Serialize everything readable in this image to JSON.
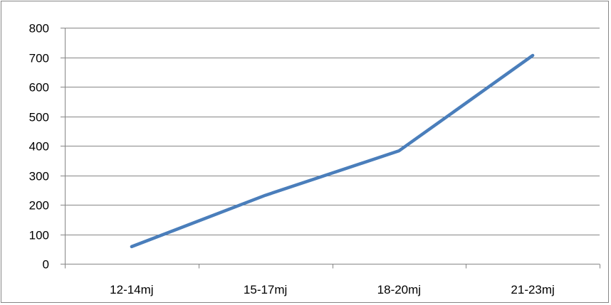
{
  "chart_data": {
    "type": "line",
    "categories": [
      "12-14mj",
      "15-17mj",
      "18-20mj",
      "21-23mj"
    ],
    "series": [
      {
        "values": [
          58,
          232,
          383,
          706
        ],
        "color": "#4a7ebb"
      }
    ],
    "title": "",
    "xlabel": "",
    "ylabel": "",
    "ylim": [
      0,
      800
    ],
    "yticks": [
      "0",
      "100",
      "200",
      "300",
      "400",
      "500",
      "600",
      "700",
      "800"
    ],
    "grid": true,
    "legend": "none"
  }
}
